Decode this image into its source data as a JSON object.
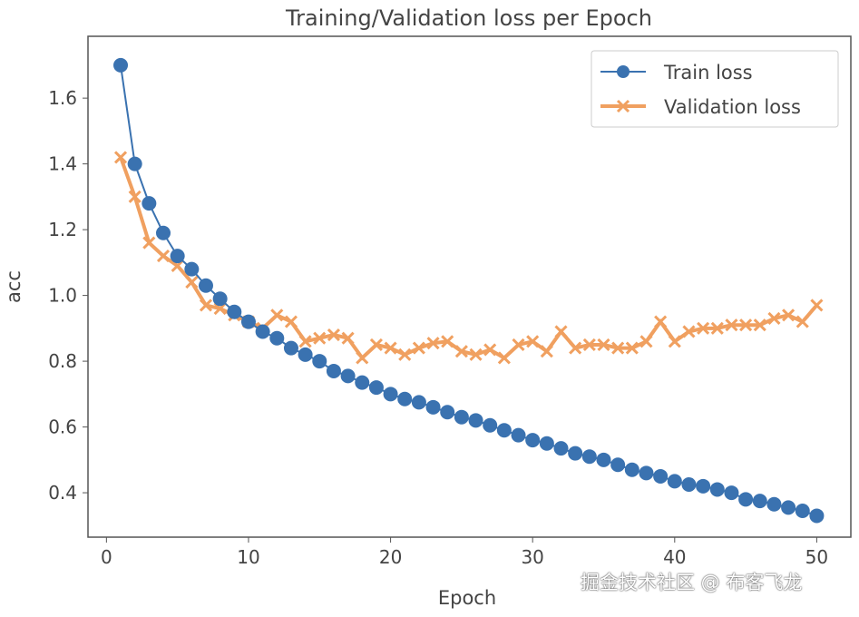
{
  "chart_data": {
    "type": "line",
    "title": "Training/Validation loss per Epoch",
    "xlabel": "Epoch",
    "ylabel": "acc",
    "xlim": [
      -1.3,
      52.4
    ],
    "ylim": [
      0.265,
      1.788
    ],
    "xticks": [
      0,
      10,
      20,
      30,
      40,
      50
    ],
    "yticks": [
      0.4,
      0.6,
      0.8,
      1.0,
      1.2,
      1.4,
      1.6
    ],
    "ytick_labels": [
      "0.4",
      "0.6",
      "0.8",
      "1.0",
      "1.2",
      "1.4",
      "1.6"
    ],
    "grid": false,
    "legend": "top-right",
    "x": [
      1,
      2,
      3,
      4,
      5,
      6,
      7,
      8,
      9,
      10,
      11,
      12,
      13,
      14,
      15,
      16,
      17,
      18,
      19,
      20,
      21,
      22,
      23,
      24,
      25,
      26,
      27,
      28,
      29,
      30,
      31,
      32,
      33,
      34,
      35,
      36,
      37,
      38,
      39,
      40,
      41,
      42,
      43,
      44,
      45,
      46,
      47,
      48,
      49,
      50
    ],
    "series": [
      {
        "name": "Train loss",
        "color": "#3a72b0",
        "marker": "circle",
        "values": [
          1.7,
          1.4,
          1.28,
          1.19,
          1.12,
          1.08,
          1.03,
          0.99,
          0.95,
          0.92,
          0.89,
          0.87,
          0.84,
          0.82,
          0.8,
          0.77,
          0.755,
          0.735,
          0.72,
          0.7,
          0.685,
          0.675,
          0.66,
          0.645,
          0.63,
          0.62,
          0.605,
          0.59,
          0.575,
          0.56,
          0.55,
          0.535,
          0.52,
          0.51,
          0.5,
          0.485,
          0.47,
          0.46,
          0.45,
          0.435,
          0.425,
          0.42,
          0.41,
          0.4,
          0.38,
          0.375,
          0.365,
          0.355,
          0.345,
          0.33
        ]
      },
      {
        "name": "Validation loss",
        "color": "#f0a060",
        "marker": "x",
        "values": [
          1.42,
          1.3,
          1.16,
          1.12,
          1.09,
          1.04,
          0.97,
          0.96,
          0.94,
          0.92,
          0.9,
          0.94,
          0.92,
          0.86,
          0.87,
          0.88,
          0.87,
          0.81,
          0.85,
          0.84,
          0.82,
          0.84,
          0.855,
          0.86,
          0.83,
          0.82,
          0.835,
          0.81,
          0.85,
          0.86,
          0.83,
          0.89,
          0.84,
          0.85,
          0.85,
          0.84,
          0.84,
          0.86,
          0.92,
          0.86,
          0.89,
          0.9,
          0.9,
          0.91,
          0.91,
          0.91,
          0.93,
          0.94,
          0.92,
          0.97
        ]
      }
    ]
  },
  "watermark": "掘金技术社区 @ 布客飞龙"
}
